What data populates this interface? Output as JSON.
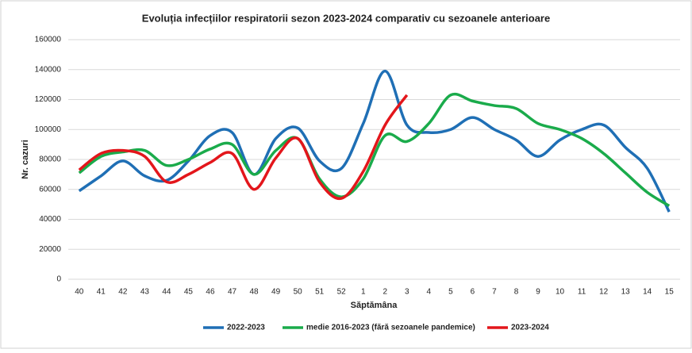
{
  "chart_data": {
    "type": "line",
    "title": "Evoluția infecțiilor respiratorii sezon 2023-2024 comparativ cu sezoanele anterioare",
    "y_label": "Nr. cazuri",
    "x_label": "Săptămâna",
    "categories": [
      "40",
      "41",
      "42",
      "43",
      "44",
      "45",
      "46",
      "47",
      "48",
      "49",
      "50",
      "51",
      "52",
      "1",
      "2",
      "3",
      "4",
      "5",
      "6",
      "7",
      "8",
      "9",
      "10",
      "11",
      "12",
      "13",
      "14",
      "15"
    ],
    "series": [
      {
        "name": "2022-2023",
        "color": "#1f6fb5",
        "values": [
          59000,
          69000,
          79000,
          69000,
          66000,
          79000,
          96000,
          98000,
          70000,
          94000,
          101000,
          79000,
          74000,
          104000,
          139000,
          103000,
          98000,
          100000,
          108000,
          100000,
          93000,
          82000,
          93000,
          100000,
          103000,
          88000,
          74000,
          45000
        ]
      },
      {
        "name": "medie 2016-2023 (fără sezoanele pandemice)",
        "color": "#1aab4b",
        "values": [
          71000,
          82000,
          85000,
          86000,
          76000,
          80000,
          87000,
          90000,
          70000,
          86000,
          94000,
          67000,
          55000,
          67000,
          96000,
          92000,
          104000,
          123000,
          119000,
          116000,
          114000,
          104000,
          100000,
          94000,
          84000,
          71000,
          58000,
          49000
        ]
      },
      {
        "name": "2023-2024",
        "color": "#e3161b",
        "values": [
          73000,
          84000,
          86000,
          82000,
          65000,
          70000,
          78000,
          84000,
          60000,
          81000,
          94000,
          65000,
          54000,
          72000,
          103000,
          123000,
          null,
          null,
          null,
          null,
          null,
          null,
          null,
          null,
          null,
          null,
          null,
          null
        ]
      }
    ],
    "ylim": [
      0,
      160000
    ],
    "yticks": [
      0,
      20000,
      40000,
      60000,
      80000,
      100000,
      120000,
      140000,
      160000
    ],
    "grid": true,
    "legend": "bottom"
  }
}
